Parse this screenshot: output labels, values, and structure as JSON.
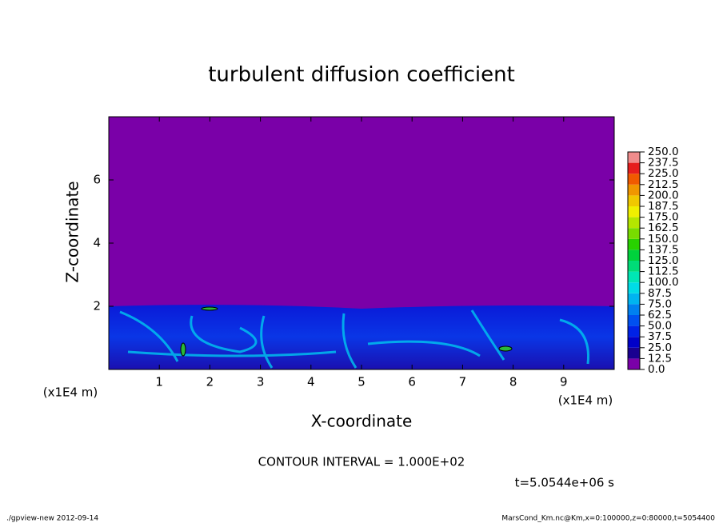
{
  "chart_data": {
    "type": "contour",
    "title": "turbulent diffusion coefficient",
    "xlabel": "X-coordinate",
    "ylabel": "Z-coordinate",
    "xunit": "(x1E4 m)",
    "yunit": "(x1E4 m)",
    "xlim": [
      0,
      10
    ],
    "ylim": [
      0,
      8
    ],
    "xticks": [
      1,
      2,
      3,
      4,
      5,
      6,
      7,
      8,
      9
    ],
    "yticks": [
      2,
      4,
      6
    ],
    "colorbar": {
      "levels": [
        {
          "value": 0,
          "label": "0.0"
        },
        {
          "value": 12.5,
          "label": "12.5"
        },
        {
          "value": 25,
          "label": "25.0"
        },
        {
          "value": 37.5,
          "label": "37.5"
        },
        {
          "value": 50,
          "label": "50.0"
        },
        {
          "value": 62.5,
          "label": "62.5"
        },
        {
          "value": 75,
          "label": "75.0"
        },
        {
          "value": 87.5,
          "label": "87.5"
        },
        {
          "value": 100,
          "label": "100.0"
        },
        {
          "value": 112.5,
          "label": "112.5"
        },
        {
          "value": 125,
          "label": "125.0"
        },
        {
          "value": 137.5,
          "label": "137.5"
        },
        {
          "value": 150,
          "label": "150.0"
        },
        {
          "value": 162.5,
          "label": "162.5"
        },
        {
          "value": 175,
          "label": "175.0"
        },
        {
          "value": 187.5,
          "label": "187.5"
        },
        {
          "value": 200,
          "label": "200.0"
        },
        {
          "value": 212.5,
          "label": "212.5"
        },
        {
          "value": 225,
          "label": "225.0"
        },
        {
          "value": 237.5,
          "label": "237.5"
        },
        {
          "value": 250,
          "label": "250.0"
        }
      ],
      "colors": [
        "#7a00a8",
        "#1a0090",
        "#0000c8",
        "#0022e6",
        "#0050f0",
        "#0080f0",
        "#00b4f0",
        "#00dce6",
        "#00e6b4",
        "#00dc78",
        "#00d23c",
        "#28d200",
        "#78dc00",
        "#b4e600",
        "#f0f000",
        "#f0c800",
        "#f09600",
        "#f05a00",
        "#e61e1e",
        "#f08c8c"
      ]
    },
    "contour_interval": "CONTOUR INTERVAL = 1.000E+02",
    "time_label": "t=5.0544e+06 s",
    "footer_left": "./gpview-new  2012-09-14",
    "footer_right": "MarsCond_Km.nc@Km,x=0:100000,z=0:80000,t=5054400"
  }
}
